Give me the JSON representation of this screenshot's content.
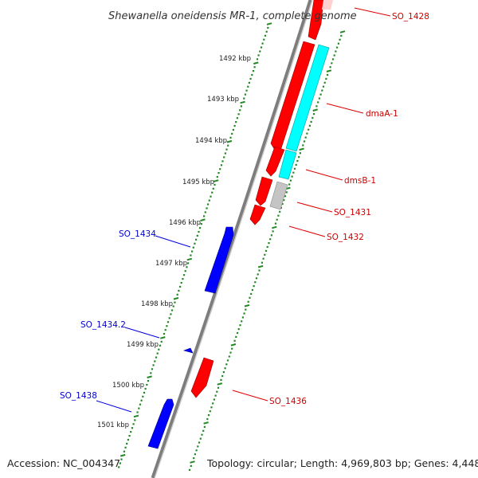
{
  "title": "Shewanella oneidensis MR-1, complete genome",
  "footer": {
    "accession": "Accession: NC_004347",
    "summary": "Topology: circular; Length: 4,969,803 bp; Genes: 4,448"
  },
  "colors": {
    "forward_gene": "#ff0000",
    "reverse_gene": "#0000ff",
    "forward_gene_light": "#00ffff",
    "pseudo_gene": "#c8c8c8",
    "backbone": "#808080",
    "tick": "#228822",
    "forward_label": "#cc0000",
    "reverse_label": "#0000cc"
  },
  "scale": {
    "labels": [
      "1492 kbp",
      "1493 kbp",
      "1494 kbp",
      "1495 kbp",
      "1496 kbp",
      "1497 kbp",
      "1498 kbp",
      "1499 kbp",
      "1500 kbp",
      "1501 kbp"
    ]
  },
  "genes": {
    "forward": [
      {
        "label": "SO_1428"
      },
      {
        "label": "dmaA-1"
      },
      {
        "label": "dmsB-1"
      },
      {
        "label": "SO_1431"
      },
      {
        "label": "SO_1432"
      },
      {
        "label": "SO_1436"
      }
    ],
    "reverse": [
      {
        "label": "SO_1434"
      },
      {
        "label": "SO_1434.2"
      },
      {
        "label": "SO_1438"
      }
    ]
  }
}
